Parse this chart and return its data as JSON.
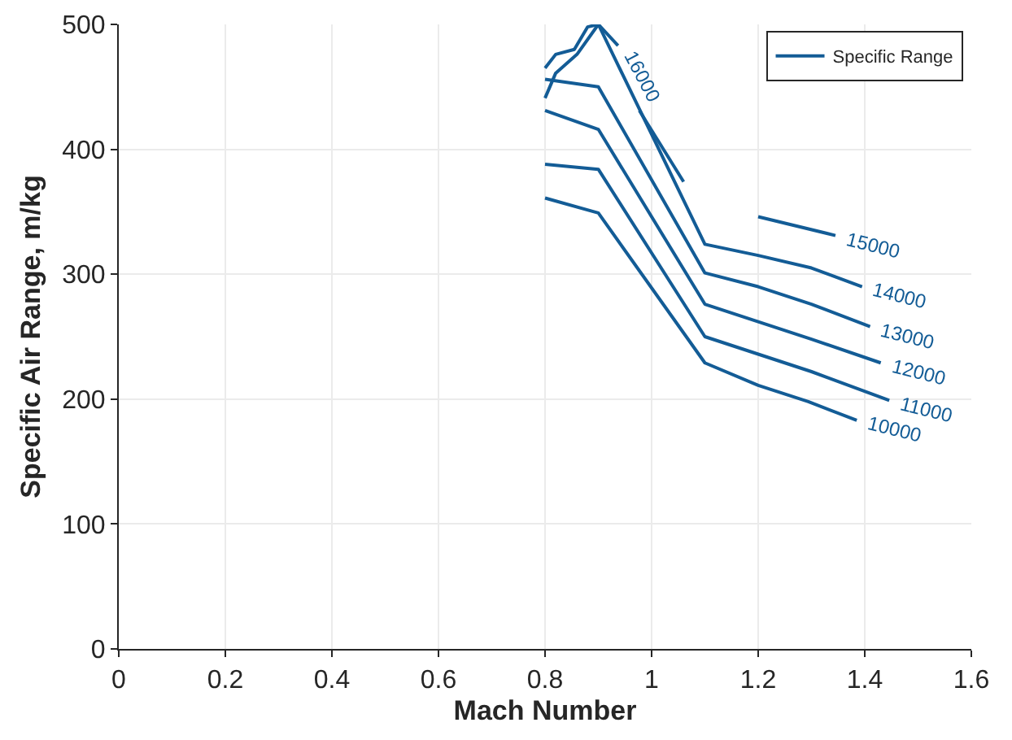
{
  "chart_data": {
    "type": "line",
    "xlabel": "Mach Number",
    "ylabel": "Specific Air Range, m/kg",
    "xlim": [
      0,
      1.6
    ],
    "xticks": [
      0,
      0.2,
      0.4,
      0.6,
      0.8,
      1,
      1.2,
      1.4,
      1.6
    ],
    "ylim": [
      0,
      500
    ],
    "yticks": [
      0,
      100,
      200,
      300,
      400,
      500
    ],
    "grid": true,
    "legend": "top right",
    "series": [
      {
        "name": "Specific Range",
        "color": "#135c96",
        "x": [
          0.8,
          0.9,
          1.1,
          1.2,
          1.294,
          1.385,
          null,
          0.8,
          0.9,
          1.1,
          1.2,
          1.3,
          1.446,
          null,
          0.8,
          0.9,
          1.1,
          1.2,
          1.3,
          1.43,
          null,
          0.8,
          0.9,
          1.1,
          1.2,
          1.3,
          1.41,
          null,
          0.8,
          0.82,
          0.86,
          0.9,
          1.1,
          1.2,
          1.3,
          1.395,
          null,
          0.8,
          0.82,
          0.855,
          0.88,
          0.9,
          0.937,
          null,
          0.977,
          1.06,
          null,
          1.2,
          1.345
        ],
        "values": [
          361,
          349,
          229,
          211,
          198,
          183,
          null,
          388,
          384,
          250,
          236,
          222,
          199,
          null,
          431,
          416,
          276,
          262,
          248,
          229,
          null,
          456,
          450,
          301,
          290,
          276,
          258,
          null,
          441,
          461,
          476,
          500,
          324,
          315,
          305,
          290,
          null,
          465,
          476,
          480,
          498,
          500,
          483,
          null,
          431,
          374,
          null,
          346,
          331
        ]
      }
    ],
    "annotations": [
      {
        "text": "10000",
        "x": 1.385,
        "y": 183
      },
      {
        "text": "11000",
        "x": 1.446,
        "y": 199
      },
      {
        "text": "12000",
        "x": 1.43,
        "y": 229
      },
      {
        "text": "13000",
        "x": 1.41,
        "y": 258
      },
      {
        "text": "14000",
        "x": 1.395,
        "y": 290
      },
      {
        "text": "15000",
        "x": 1.345,
        "y": 331
      },
      {
        "text": "16000",
        "x": 0.937,
        "y": 483
      }
    ]
  }
}
